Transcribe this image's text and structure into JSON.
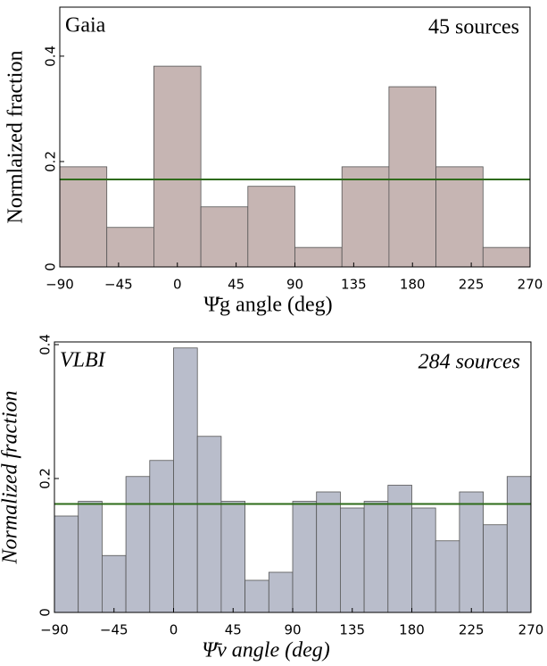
{
  "chart_data": [
    {
      "type": "histogram",
      "label": "Gaia",
      "annotation": "45 sources",
      "xlabel": "Ψ̄g angle (deg)",
      "ylabel": "Normlaized fraction",
      "italic": false,
      "bins": [
        -90,
        -54,
        -18,
        18,
        54,
        90,
        126,
        162,
        198,
        234,
        270
      ],
      "values": [
        0.19,
        0.075,
        0.381,
        0.114,
        0.153,
        0.037,
        0.19,
        0.342,
        0.19,
        0.037
      ],
      "color": "#c6b5b3",
      "reference_line": 0.166,
      "reference_color": "#2e6b1a",
      "xlim": [
        -90,
        270
      ],
      "ylim": [
        0,
        0.493
      ],
      "xticks": [
        {
          "value": -90,
          "label": "−90"
        },
        {
          "value": -45,
          "label": "−45"
        },
        0,
        45,
        90,
        135,
        180,
        225,
        270
      ],
      "yticks": [
        0,
        0.2,
        0.4
      ]
    },
    {
      "type": "histogram",
      "label": "VLBI",
      "annotation": "284 sources",
      "xlabel": "Ψ̄v angle (deg)",
      "ylabel": "Normalized fraction",
      "italic": true,
      "bins": [
        -90,
        -72,
        -54,
        -36,
        -18,
        0,
        18,
        36,
        54,
        72,
        90,
        108,
        126,
        144,
        162,
        180,
        198,
        216,
        234,
        252,
        270
      ],
      "values": [
        0.144,
        0.166,
        0.085,
        0.203,
        0.227,
        0.395,
        0.263,
        0.166,
        0.048,
        0.06,
        0.166,
        0.18,
        0.156,
        0.166,
        0.19,
        0.156,
        0.107,
        0.18,
        0.131,
        0.203
      ],
      "color": "#b9bdcb",
      "reference_line": 0.162,
      "reference_color": "#2e6b1a",
      "xlim": [
        -90,
        270
      ],
      "ylim": [
        0,
        0.404
      ],
      "xticks": [
        {
          "value": -90,
          "label": "−90"
        },
        {
          "value": -45,
          "label": "−45"
        },
        0,
        45,
        90,
        135,
        180,
        225,
        270
      ],
      "yticks": [
        0,
        0.2,
        0.4
      ]
    }
  ]
}
